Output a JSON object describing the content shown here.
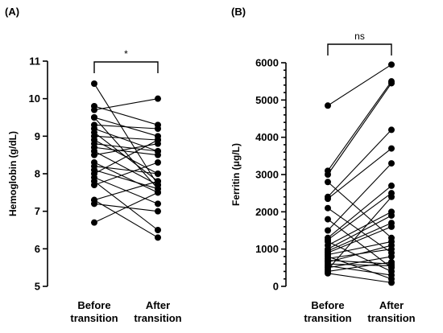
{
  "chart_data": [
    {
      "type": "paired-dot-line",
      "panel_label": "(A)",
      "categories": [
        "Before\ntransition",
        "After\ntransition"
      ],
      "ylabel": "Hemoglobin (g/dL)",
      "ylim": [
        5,
        11
      ],
      "yticks": [
        5,
        6,
        7,
        8,
        9,
        10,
        11
      ],
      "significance": "*",
      "pairs": [
        [
          10.4,
          7.7
        ],
        [
          9.8,
          9.3
        ],
        [
          9.7,
          10.0
        ],
        [
          9.5,
          9.0
        ],
        [
          9.5,
          7.6
        ],
        [
          9.3,
          9.2
        ],
        [
          9.2,
          8.6
        ],
        [
          9.1,
          7.8
        ],
        [
          9.0,
          8.9
        ],
        [
          8.9,
          8.0
        ],
        [
          8.7,
          8.5
        ],
        [
          8.6,
          7.7
        ],
        [
          8.5,
          8.8
        ],
        [
          8.3,
          7.5
        ],
        [
          8.2,
          8.0
        ],
        [
          8.0,
          8.9
        ],
        [
          7.9,
          7.2
        ],
        [
          7.8,
          6.5
        ],
        [
          7.7,
          8.3
        ],
        [
          7.3,
          6.3
        ],
        [
          7.3,
          7.8
        ],
        [
          7.2,
          7.0
        ],
        [
          6.7,
          7.5
        ],
        [
          8.8,
          8.6
        ],
        [
          8.1,
          7.6
        ]
      ]
    },
    {
      "type": "paired-dot-line",
      "panel_label": "(B)",
      "categories": [
        "Before\ntransition",
        "After\ntransition"
      ],
      "ylabel": "Ferritin (μg/L)",
      "ylim": [
        0,
        6000
      ],
      "yticks": [
        0,
        1000,
        2000,
        3000,
        4000,
        5000,
        6000
      ],
      "significance": "ns",
      "pairs": [
        [
          4850,
          5950
        ],
        [
          3100,
          5500
        ],
        [
          3000,
          5450
        ],
        [
          2800,
          1300
        ],
        [
          2400,
          4200
        ],
        [
          2350,
          3700
        ],
        [
          2100,
          900
        ],
        [
          1800,
          500
        ],
        [
          1500,
          3300
        ],
        [
          1300,
          2700
        ],
        [
          1250,
          2500
        ],
        [
          1200,
          400
        ],
        [
          1100,
          2000
        ],
        [
          1000,
          1900
        ],
        [
          950,
          1700
        ],
        [
          900,
          1600
        ],
        [
          850,
          1200
        ],
        [
          800,
          200
        ],
        [
          750,
          1000
        ],
        [
          700,
          600
        ],
        [
          650,
          1100
        ],
        [
          600,
          550
        ],
        [
          550,
          300
        ],
        [
          500,
          800
        ],
        [
          450,
          2400
        ],
        [
          400,
          650
        ],
        [
          350,
          100
        ]
      ]
    }
  ]
}
